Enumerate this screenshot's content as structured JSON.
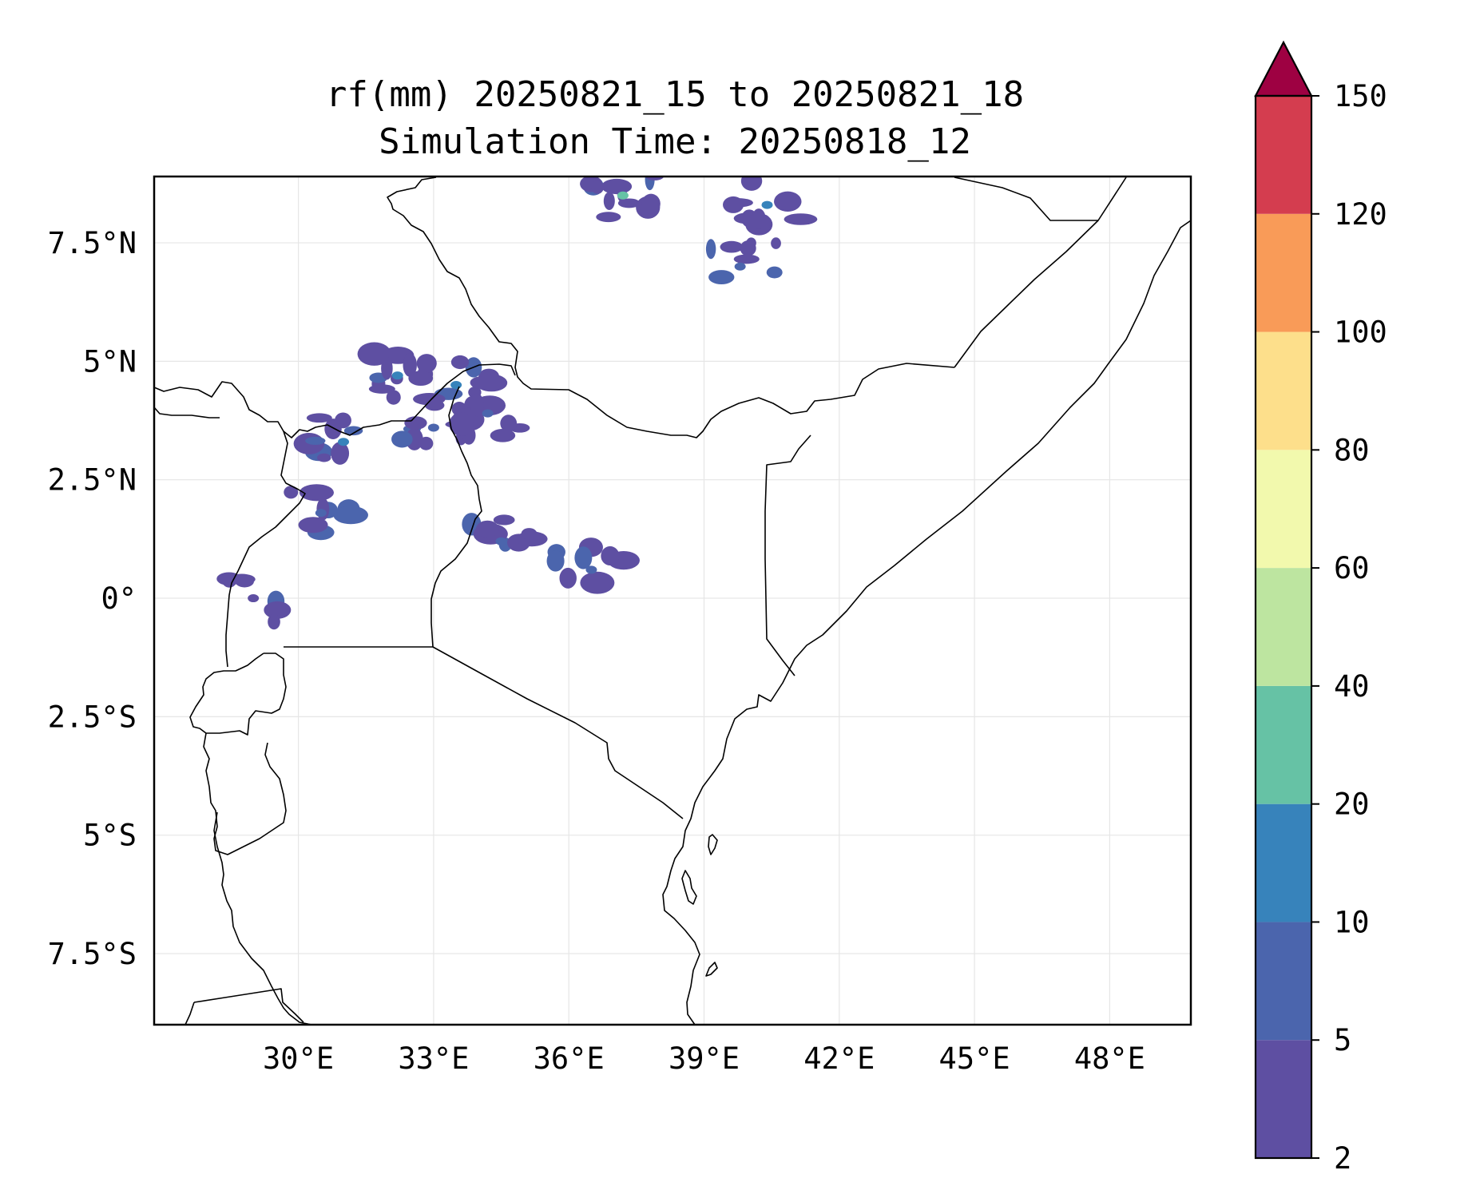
{
  "title": {
    "line1": "rf(mm) 20250821_15 to 20250821_18",
    "line2": "Simulation Time: 20250818_12"
  },
  "map": {
    "lon_range": [
      26.8,
      49.8
    ],
    "lat_range": [
      -9.0,
      8.9
    ],
    "x_ticks": [
      {
        "value": 30,
        "label": "30°E"
      },
      {
        "value": 33,
        "label": "33°E"
      },
      {
        "value": 36,
        "label": "36°E"
      },
      {
        "value": 39,
        "label": "39°E"
      },
      {
        "value": 42,
        "label": "42°E"
      },
      {
        "value": 45,
        "label": "45°E"
      },
      {
        "value": 48,
        "label": "48°E"
      }
    ],
    "y_ticks": [
      {
        "value": 7.5,
        "label": "7.5°N"
      },
      {
        "value": 5,
        "label": "5°N"
      },
      {
        "value": 2.5,
        "label": "2.5°N"
      },
      {
        "value": 0,
        "label": "0°"
      },
      {
        "value": -2.5,
        "label": "2.5°S"
      },
      {
        "value": -5,
        "label": "5°S"
      },
      {
        "value": -7.5,
        "label": "7.5°S"
      }
    ],
    "gridlines": true
  },
  "colorbar": {
    "extend": "max",
    "extend_color": "#9e0142",
    "levels": [
      {
        "label": "2",
        "value": 2
      },
      {
        "label": "5",
        "value": 5
      },
      {
        "label": "10",
        "value": 10
      },
      {
        "label": "20",
        "value": 20
      },
      {
        "label": "40",
        "value": 40
      },
      {
        "label": "60",
        "value": 60
      },
      {
        "label": "80",
        "value": 80
      },
      {
        "label": "100",
        "value": 100
      },
      {
        "label": "120",
        "value": 120
      },
      {
        "label": "150",
        "value": 150
      }
    ],
    "colors": [
      "#5e4fa2",
      "#4b65ad",
      "#3783bb",
      "#66c2a5",
      "#bde5a0",
      "#f2f9ad",
      "#fddf8b",
      "#f99b58",
      "#d43d4f"
    ]
  },
  "chart_data": {
    "type": "heatmap",
    "variable": "rf(mm)",
    "period": "20250821_15 to 20250821_18",
    "simulation_time": "20250818_12",
    "rain_cells_mm": [
      {
        "lon": 32.2,
        "lat": 4.7,
        "value": 12
      },
      {
        "lon": 33.5,
        "lat": 4.5,
        "value": 15
      },
      {
        "lon": 31.0,
        "lat": 3.3,
        "value": 10
      },
      {
        "lon": 30.5,
        "lat": 1.8,
        "value": 6
      },
      {
        "lon": 33.0,
        "lat": 3.6,
        "value": 8
      },
      {
        "lon": 34.2,
        "lat": 3.9,
        "value": 9
      },
      {
        "lon": 34.5,
        "lat": 1.2,
        "value": 6
      },
      {
        "lon": 37.2,
        "lat": 8.5,
        "value": 20
      },
      {
        "lon": 40.4,
        "lat": 8.3,
        "value": 12
      },
      {
        "lon": 39.8,
        "lat": 7.0,
        "value": 6
      },
      {
        "lon": 36.5,
        "lat": 0.6,
        "value": 5
      },
      {
        "lon": 29.0,
        "lat": 0.0,
        "value": 4
      }
    ]
  }
}
